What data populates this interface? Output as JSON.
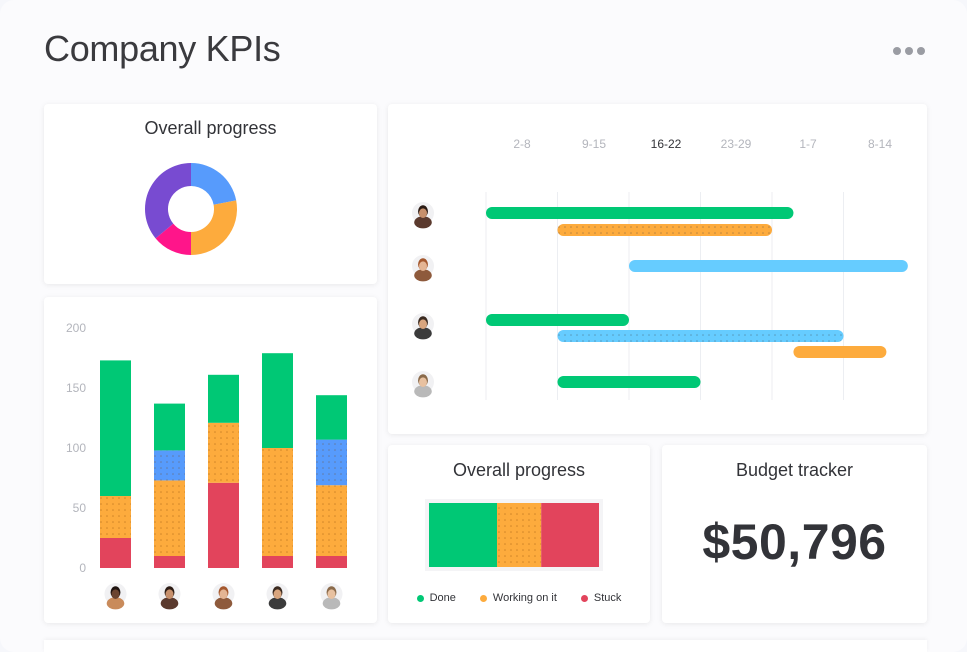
{
  "page": {
    "title": "Company KPIs",
    "menu_icon": "more-horizontal-icon"
  },
  "donut": {
    "title": "Overall progress",
    "slices": [
      {
        "value": 22,
        "color": "#579bfc"
      },
      {
        "value": 28,
        "color": "#fdab3d"
      },
      {
        "value": 14,
        "color": "#ff158a"
      },
      {
        "value": 36,
        "color": "#784bd1"
      }
    ]
  },
  "bar_chart": {
    "yticks": [
      "200",
      "150",
      "100",
      "50",
      "0"
    ],
    "ymax": 200,
    "avatars": [
      "avatar-1",
      "avatar-2",
      "avatar-3",
      "avatar-4",
      "avatar-5"
    ],
    "columns": [
      {
        "segments": [
          {
            "value": 25,
            "color": "#e2445c"
          },
          {
            "value": 35,
            "color": "#fdab3d",
            "dotted": true
          },
          {
            "value": 113,
            "color": "#00c875"
          }
        ]
      },
      {
        "segments": [
          {
            "value": 10,
            "color": "#e2445c"
          },
          {
            "value": 63,
            "color": "#fdab3d",
            "dotted": true
          },
          {
            "value": 25,
            "color": "#579bfc",
            "dotted": true
          },
          {
            "value": 39,
            "color": "#00c875"
          }
        ]
      },
      {
        "segments": [
          {
            "value": 71,
            "color": "#e2445c"
          },
          {
            "value": 50,
            "color": "#fdab3d",
            "dotted": true
          },
          {
            "value": 40,
            "color": "#00c875"
          }
        ]
      },
      {
        "segments": [
          {
            "value": 10,
            "color": "#e2445c"
          },
          {
            "value": 90,
            "color": "#fdab3d",
            "dotted": true
          },
          {
            "value": 79,
            "color": "#00c875"
          }
        ]
      },
      {
        "segments": [
          {
            "value": 10,
            "color": "#e2445c"
          },
          {
            "value": 59,
            "color": "#fdab3d",
            "dotted": true
          },
          {
            "value": 38,
            "color": "#579bfc",
            "dotted": true
          },
          {
            "value": 37,
            "color": "#00c875"
          }
        ]
      }
    ]
  },
  "timeline": {
    "weeks": [
      "2-8",
      "9-15",
      "16-22",
      "23-29",
      "1-7",
      "8-14"
    ],
    "current_week": "16-22",
    "rows": [
      {
        "avatar": "avatar-a",
        "bars": [
          {
            "start": 0.0,
            "end": 4.3,
            "color": "#00c875"
          },
          {
            "start": 1.0,
            "end": 4.0,
            "color": "#fdab3d",
            "dotted": true
          }
        ]
      },
      {
        "avatar": "avatar-b",
        "bars": [
          {
            "start": 2.0,
            "end": 5.9,
            "color": "#66ccff"
          }
        ]
      },
      {
        "avatar": "avatar-c",
        "bars": [
          {
            "start": 0.0,
            "end": 2.0,
            "color": "#00c875"
          },
          {
            "start": 1.0,
            "end": 5.0,
            "color": "#66ccff",
            "dotted": true
          },
          {
            "start": 4.3,
            "end": 5.6,
            "color": "#fdab3d"
          }
        ]
      },
      {
        "avatar": "avatar-d",
        "bars": [
          {
            "start": 1.0,
            "end": 3.0,
            "color": "#00c875"
          }
        ]
      }
    ]
  },
  "status": {
    "title": "Overall progress",
    "segments": [
      {
        "value": 40,
        "color": "#00c875"
      },
      {
        "value": 26,
        "color": "#fdab3d",
        "dotted": true
      },
      {
        "value": 34,
        "color": "#e2445c"
      }
    ],
    "legend": [
      {
        "label": "Done",
        "color": "#00c875"
      },
      {
        "label": "Working on it",
        "color": "#fdab3d"
      },
      {
        "label": "Stuck",
        "color": "#e2445c"
      }
    ]
  },
  "budget": {
    "title": "Budget tracker",
    "value": "$50,796"
  }
}
